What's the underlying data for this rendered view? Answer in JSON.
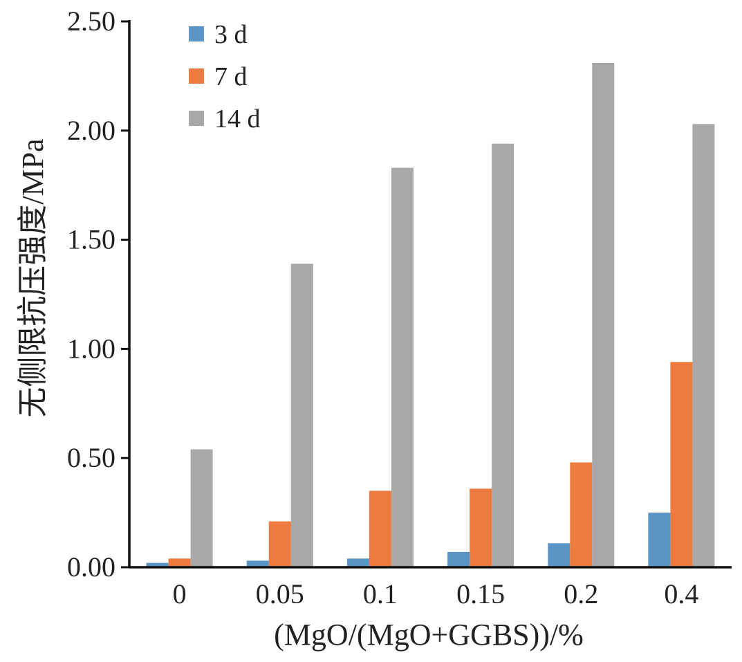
{
  "chart_data": {
    "type": "bar",
    "categories": [
      "0",
      "0.05",
      "0.1",
      "0.15",
      "0.2",
      "0.4"
    ],
    "series": [
      {
        "name": "3 d",
        "color": "#5b95c5",
        "values": [
          0.02,
          0.03,
          0.04,
          0.07,
          0.11,
          0.25
        ]
      },
      {
        "name": "7 d",
        "color": "#ed7a3f",
        "values": [
          0.04,
          0.21,
          0.35,
          0.36,
          0.48,
          0.94
        ]
      },
      {
        "name": "14 d",
        "color": "#a8a8a8",
        "values": [
          0.54,
          1.39,
          1.83,
          1.94,
          2.31,
          2.03
        ]
      }
    ],
    "xlabel": "(MgO/(MgO+GGBS))/%",
    "ylabel": "无侧限抗压强度/MPa",
    "ylim": [
      0,
      2.5
    ],
    "yticks": [
      "0.00",
      "0.50",
      "1.00",
      "1.50",
      "2.00",
      "2.50"
    ],
    "grid": false,
    "legend_position": "top-left"
  }
}
